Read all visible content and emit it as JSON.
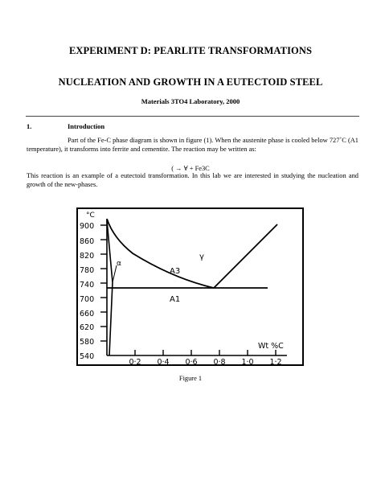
{
  "document": {
    "title_line1": "EXPERIMENT D:  PEARLITE TRANSFORMATIONS",
    "title_line2": "NUCLEATION AND GROWTH IN A EUTECTOID STEEL",
    "subtitle": "Materials 3TO4 Laboratory, 2000",
    "section_number": "1.",
    "section_title": "Introduction",
    "paragraph1": "Part of the Fe-C phase diagram is shown in figure (1).  When the austenite phase is cooled below 727˚C (A1 temperature), it transforms into ferrite and cementite.  The reaction may be written as:",
    "reaction": "( → ∀ + Fe3C",
    "paragraph2": "This reaction is an example of a eutectoid transformation. In this lab we are interested in studying the nucleation and growth of the new-phases.",
    "figure_caption": "Figure 1"
  },
  "figure": {
    "y_unit": "°C",
    "x_unit": "Wt %C",
    "y_ticks": [
      "900",
      "860",
      "820",
      "780",
      "740",
      "700",
      "660",
      "620",
      "580",
      "540"
    ],
    "x_ticks": [
      "0·2",
      "0·4",
      "0·6",
      "0·8",
      "1·0",
      "1·2"
    ],
    "labels": {
      "alpha": "α",
      "a3": "A3",
      "gamma": "γ",
      "a1": "A1"
    }
  }
}
